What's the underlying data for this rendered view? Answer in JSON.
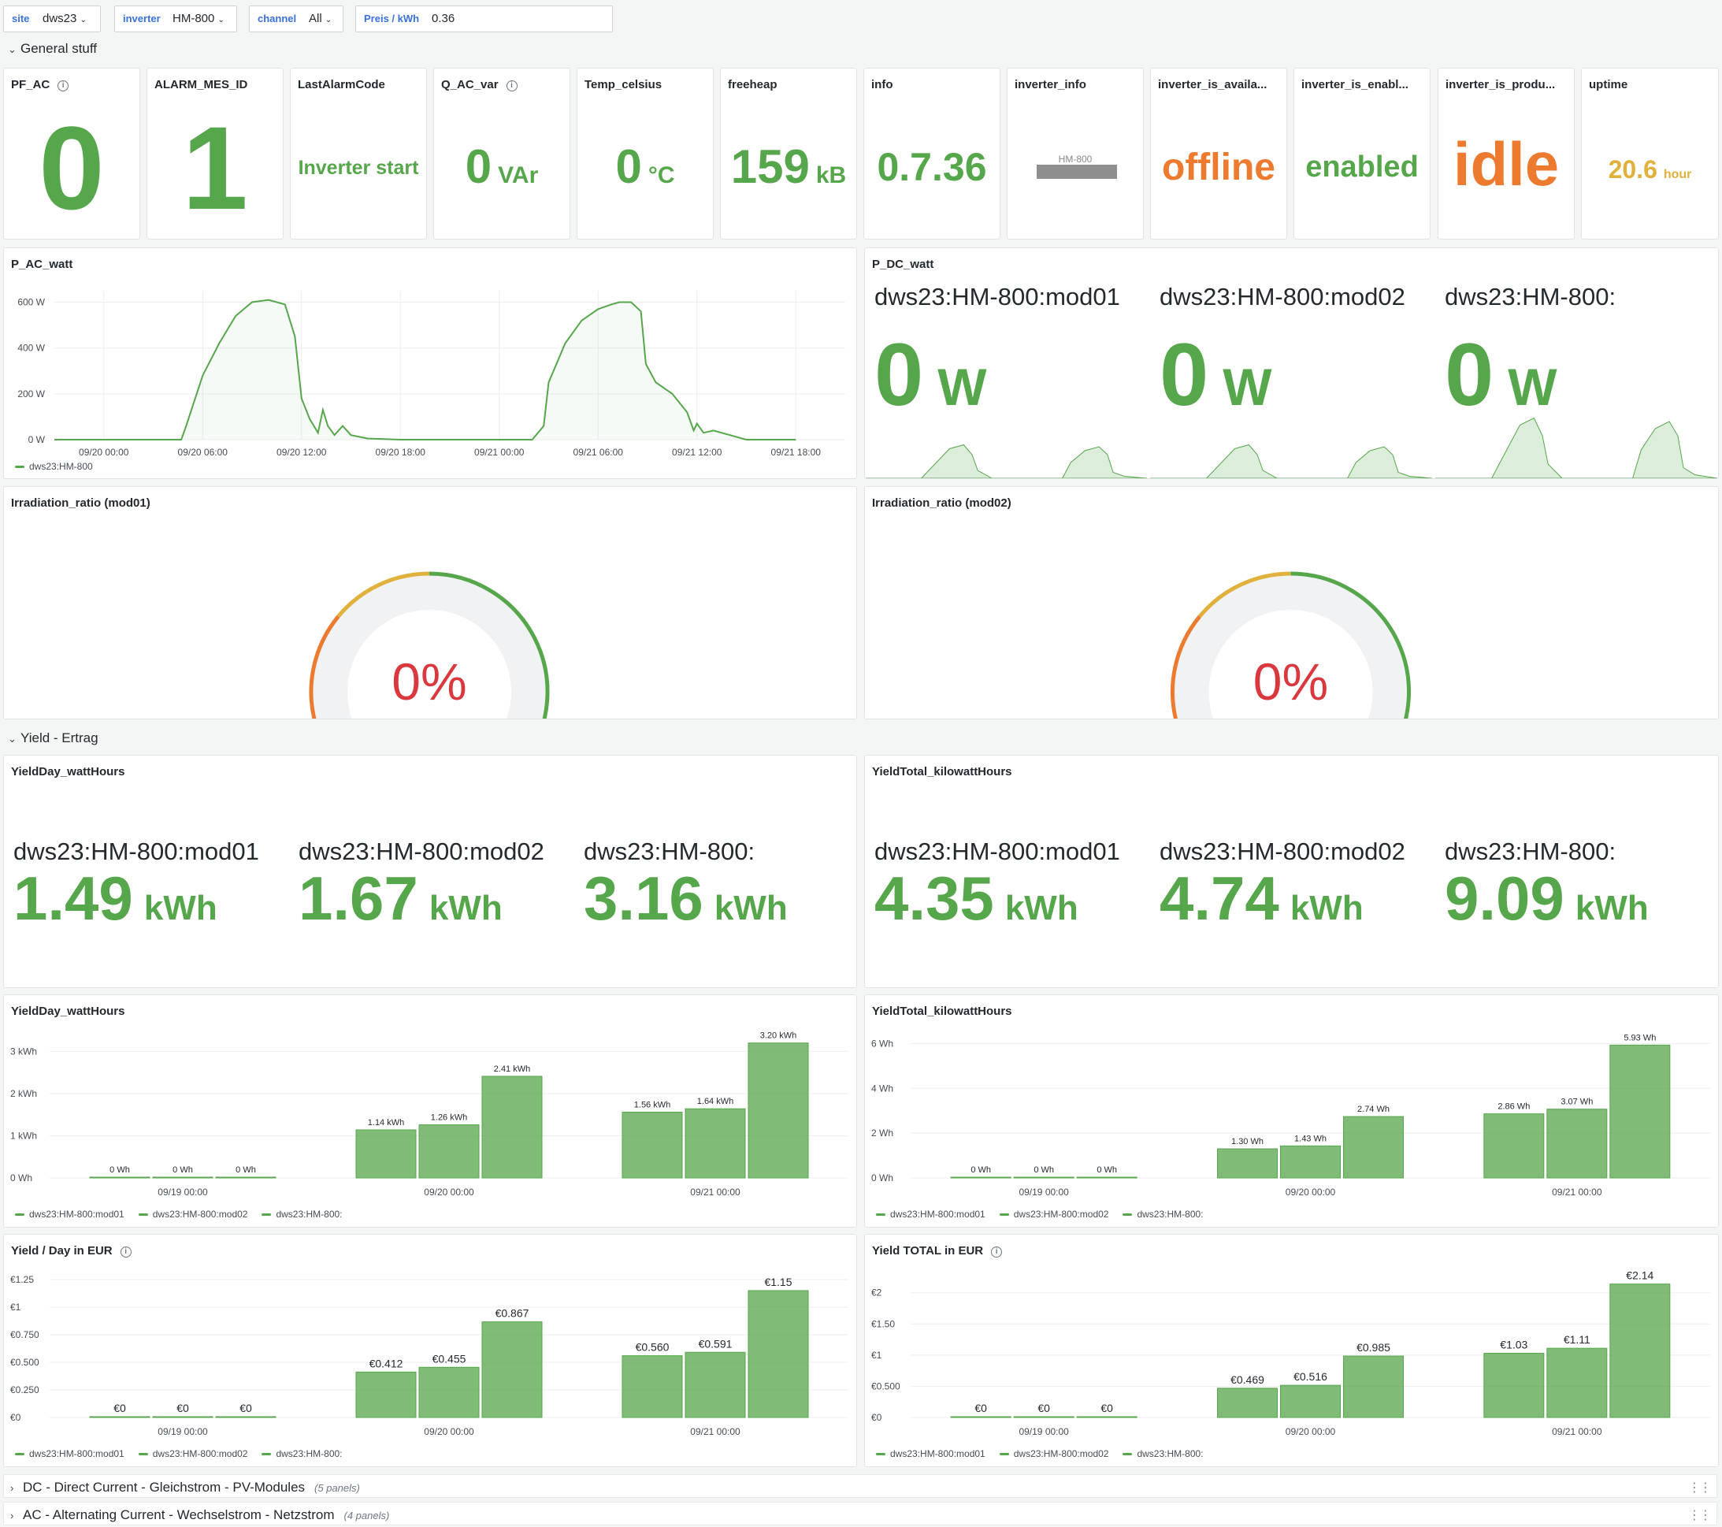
{
  "variables": [
    {
      "label": "site",
      "value": "dws23"
    },
    {
      "label": "inverter",
      "value": "HM-800"
    },
    {
      "label": "channel",
      "value": "All"
    },
    {
      "label": "Preis / kWh",
      "value": "0.36"
    }
  ],
  "rows": {
    "general": "General stuff",
    "yield": "Yield - Ertrag",
    "dc": "DC - Direct Current - Gleichstrom - PV-Modules",
    "dc_count": "(5 panels)",
    "ac": "AC - Alternating Current - Wechselstrom - Netzstrom",
    "ac_count": "(4 panels)"
  },
  "stats": [
    {
      "title": "PF_AC",
      "value": "0",
      "unit": "",
      "color": "#56a64b",
      "info": true
    },
    {
      "title": "ALARM_MES_ID",
      "value": "1",
      "unit": "",
      "color": "#56a64b"
    },
    {
      "title": "LastAlarmCode",
      "value": "Inverter start",
      "unit": "",
      "color": "#56a64b"
    },
    {
      "title": "Q_AC_var",
      "value": "0",
      "unit": "VAr",
      "color": "#56a64b",
      "info": true
    },
    {
      "title": "Temp_celsius",
      "value": "0",
      "unit": "°C",
      "color": "#56a64b"
    },
    {
      "title": "freeheap",
      "value": "159",
      "unit": "kB",
      "color": "#56a64b"
    },
    {
      "title": "info",
      "value": "0.7.36",
      "unit": "",
      "color": "#56a64b"
    },
    {
      "title": "inverter_info",
      "value": "HM-800",
      "unit": "",
      "color": "#888888"
    },
    {
      "title": "inverter_is_availa...",
      "value": "offline",
      "unit": "",
      "color": "#ed7b2f"
    },
    {
      "title": "inverter_is_enabl...",
      "value": "enabled",
      "unit": "",
      "color": "#56a64b"
    },
    {
      "title": "inverter_is_produ...",
      "value": "idle",
      "unit": "",
      "color": "#ed7b2f"
    },
    {
      "title": "uptime",
      "value": "20.6",
      "unit": "hour",
      "color": "#e0b13d"
    }
  ],
  "pac": {
    "title": "P_AC_watt",
    "legend": "dws23:HM-800",
    "chart_data": {
      "type": "line",
      "yticks": [
        "0 W",
        "200 W",
        "400 W",
        "600 W"
      ],
      "ylim": [
        0,
        650
      ],
      "xticks": [
        "09/20 00:00",
        "09/20 06:00",
        "09/20 12:00",
        "09/20 18:00",
        "09/21 00:00",
        "09/21 06:00",
        "09/21 12:00",
        "09/21 18:00"
      ],
      "x_hours": [
        0,
        5,
        7.7,
        8,
        9,
        10,
        11,
        12,
        13,
        14,
        14.6,
        15,
        15.5,
        16,
        16.3,
        16.6,
        17,
        17.5,
        18,
        19,
        21,
        24,
        29,
        29.7,
        30,
        31,
        32,
        33,
        33.8,
        34.3,
        35,
        35.6,
        35.9,
        36.5,
        37.5,
        38.4,
        38.8,
        39,
        39.4,
        40,
        41,
        42,
        45
      ],
      "values": [
        0,
        0,
        0,
        60,
        280,
        420,
        540,
        600,
        610,
        590,
        450,
        180,
        90,
        30,
        130,
        60,
        20,
        60,
        20,
        5,
        0,
        0,
        0,
        60,
        250,
        420,
        520,
        570,
        590,
        600,
        600,
        560,
        330,
        250,
        200,
        120,
        40,
        70,
        30,
        40,
        20,
        0,
        0
      ],
      "series": [
        {
          "name": "dws23:HM-800"
        }
      ]
    }
  },
  "pdc": {
    "title": "P_DC_watt",
    "items": [
      {
        "name": "dws23:HM-800:mod01",
        "value": "0",
        "unit": "W"
      },
      {
        "name": "dws23:HM-800:mod02",
        "value": "0",
        "unit": "W"
      },
      {
        "name": "dws23:HM-800:",
        "value": "0",
        "unit": "W"
      }
    ]
  },
  "gauges": [
    {
      "title": "Irradiation_ratio (mod01)",
      "value": "0%",
      "fraction": 0
    },
    {
      "title": "Irradiation_ratio (mod02)",
      "value": "0%",
      "fraction": 0
    }
  ],
  "yield_stats": [
    {
      "title": "YieldDay_wattHours",
      "items": [
        {
          "name": "dws23:HM-800:mod01",
          "value": "1.49",
          "unit": "kWh"
        },
        {
          "name": "dws23:HM-800:mod02",
          "value": "1.67",
          "unit": "kWh"
        },
        {
          "name": "dws23:HM-800:",
          "value": "3.16",
          "unit": "kWh"
        }
      ]
    },
    {
      "title": "YieldTotal_kilowattHours",
      "items": [
        {
          "name": "dws23:HM-800:mod01",
          "value": "4.35",
          "unit": "kWh"
        },
        {
          "name": "dws23:HM-800:mod02",
          "value": "4.74",
          "unit": "kWh"
        },
        {
          "name": "dws23:HM-800:",
          "value": "9.09",
          "unit": "kWh"
        }
      ]
    }
  ],
  "bar_charts": [
    {
      "title": "YieldDay_wattHours",
      "info": false,
      "legend": [
        "dws23:HM-800:mod01",
        "dws23:HM-800:mod02",
        "dws23:HM-800:"
      ],
      "chart_data": {
        "type": "bar",
        "ymax": 3.4,
        "yticks": [
          {
            "v": 0,
            "l": "0 Wh"
          },
          {
            "v": 1,
            "l": "1 kWh"
          },
          {
            "v": 2,
            "l": "2 kWh"
          },
          {
            "v": 3,
            "l": "3 kWh"
          }
        ],
        "xticks": [
          "09/19 00:00",
          "09/20 00:00",
          "09/21 00:00"
        ],
        "series": [
          {
            "name": "dws23:HM-800:mod01"
          },
          {
            "name": "dws23:HM-800:mod02"
          },
          {
            "name": "dws23:HM-800:"
          }
        ],
        "groups": [
          {
            "values": [
              0,
              0,
              0
            ],
            "labels": [
              "0 Wh",
              "0 Wh",
              "0 Wh"
            ]
          },
          {
            "values": [
              1.14,
              1.26,
              2.41
            ],
            "labels": [
              "1.14 kWh",
              "1.26 kWh",
              "2.41 kWh"
            ]
          },
          {
            "values": [
              1.56,
              1.64,
              3.2
            ],
            "labels": [
              "1.56 kWh",
              "1.64 kWh",
              "3.20 kWh"
            ]
          }
        ]
      }
    },
    {
      "title": "YieldTotal_kilowattHours",
      "info": false,
      "legend": [
        "dws23:HM-800:mod01",
        "dws23:HM-800:mod02",
        "dws23:HM-800:"
      ],
      "chart_data": {
        "type": "bar",
        "ymax": 6.4,
        "yticks": [
          {
            "v": 0,
            "l": "0 Wh"
          },
          {
            "v": 2,
            "l": "2 Wh"
          },
          {
            "v": 4,
            "l": "4 Wh"
          },
          {
            "v": 6,
            "l": "6 Wh"
          }
        ],
        "xticks": [
          "09/19 00:00",
          "09/20 00:00",
          "09/21 00:00"
        ],
        "series": [
          {
            "name": "dws23:HM-800:mod01"
          },
          {
            "name": "dws23:HM-800:mod02"
          },
          {
            "name": "dws23:HM-800:"
          }
        ],
        "groups": [
          {
            "values": [
              0,
              0,
              0
            ],
            "labels": [
              "0 Wh",
              "0 Wh",
              "0 Wh"
            ]
          },
          {
            "values": [
              1.3,
              1.43,
              2.74
            ],
            "labels": [
              "1.30 Wh",
              "1.43 Wh",
              "2.74 Wh"
            ]
          },
          {
            "values": [
              2.86,
              3.07,
              5.93
            ],
            "labels": [
              "2.86 Wh",
              "3.07 Wh",
              "5.93 Wh"
            ]
          }
        ]
      }
    },
    {
      "title": "Yield / Day in EUR",
      "info": true,
      "legend": [
        "dws23:HM-800:mod01",
        "dws23:HM-800:mod02",
        "dws23:HM-800:"
      ],
      "chart_data": {
        "type": "bar",
        "ymax": 1.3,
        "yticks": [
          {
            "v": 0,
            "l": "€0"
          },
          {
            "v": 0.25,
            "l": "€0.250"
          },
          {
            "v": 0.5,
            "l": "€0.500"
          },
          {
            "v": 0.75,
            "l": "€0.750"
          },
          {
            "v": 1,
            "l": "€1"
          },
          {
            "v": 1.25,
            "l": "€1.25"
          }
        ],
        "xticks": [
          "09/19 00:00",
          "09/20 00:00",
          "09/21 00:00"
        ],
        "series": [
          {
            "name": "dws23:HM-800:mod01"
          },
          {
            "name": "dws23:HM-800:mod02"
          },
          {
            "name": "dws23:HM-800:"
          }
        ],
        "groups": [
          {
            "values": [
              0,
              0,
              0
            ],
            "labels": [
              "€0",
              "€0",
              "€0"
            ]
          },
          {
            "values": [
              0.412,
              0.455,
              0.867
            ],
            "labels": [
              "€0.412",
              "€0.455",
              "€0.867"
            ]
          },
          {
            "values": [
              0.56,
              0.591,
              1.15
            ],
            "labels": [
              "€0.560",
              "€0.591",
              "€1.15"
            ]
          }
        ]
      }
    },
    {
      "title": "Yield TOTAL in EUR",
      "info": true,
      "legend": [
        "dws23:HM-800:mod01",
        "dws23:HM-800:mod02",
        "dws23:HM-800:"
      ],
      "chart_data": {
        "type": "bar",
        "ymax": 2.3,
        "yticks": [
          {
            "v": 0,
            "l": "€0"
          },
          {
            "v": 0.5,
            "l": "€0.500"
          },
          {
            "v": 1,
            "l": "€1"
          },
          {
            "v": 1.5,
            "l": "€1.50"
          },
          {
            "v": 2,
            "l": "€2"
          }
        ],
        "xticks": [
          "09/19 00:00",
          "09/20 00:00",
          "09/21 00:00"
        ],
        "series": [
          {
            "name": "dws23:HM-800:mod01"
          },
          {
            "name": "dws23:HM-800:mod02"
          },
          {
            "name": "dws23:HM-800:"
          }
        ],
        "groups": [
          {
            "values": [
              0,
              0,
              0
            ],
            "labels": [
              "€0",
              "€0",
              "€0"
            ]
          },
          {
            "values": [
              0.469,
              0.516,
              0.985
            ],
            "labels": [
              "€0.469",
              "€0.516",
              "€0.985"
            ]
          },
          {
            "values": [
              1.03,
              1.11,
              2.14
            ],
            "labels": [
              "€1.03",
              "€1.11",
              "€2.14"
            ]
          }
        ]
      }
    }
  ]
}
